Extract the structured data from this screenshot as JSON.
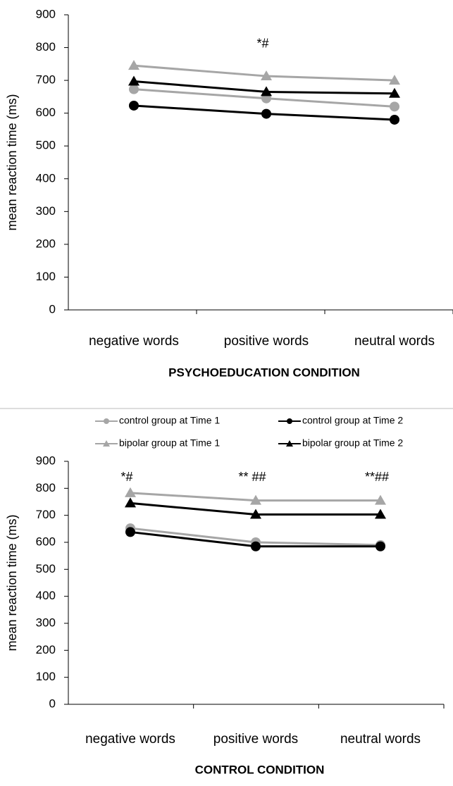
{
  "chart_data": [
    {
      "type": "line",
      "ylabel": "mean reaction time (ms)",
      "xlabel": "PSYCHOEDUCATION CONDITION",
      "categories": [
        "negative words",
        "positive words",
        "neutral words"
      ],
      "ylim": [
        0,
        900
      ],
      "yticks": [
        0,
        100,
        200,
        300,
        400,
        500,
        600,
        700,
        800,
        900
      ],
      "series": [
        {
          "color": "#a6a6a6",
          "marker": "circle",
          "values": [
            673,
            645,
            620
          ]
        },
        {
          "color": "#000000",
          "marker": "circle",
          "values": [
            623,
            598,
            580
          ]
        },
        {
          "color": "#a6a6a6",
          "marker": "triangle",
          "values": [
            745,
            713,
            700
          ]
        },
        {
          "color": "#000000",
          "marker": "triangle",
          "values": [
            697,
            665,
            660
          ]
        }
      ],
      "annotations": [
        {
          "category": 1,
          "y": 810,
          "text": "*#"
        }
      ]
    },
    {
      "type": "line",
      "ylabel": "mean reaction time (ms)",
      "xlabel": "CONTROL CONDITION",
      "categories": [
        "negative words",
        "positive words",
        "neutral words"
      ],
      "ylim": [
        0,
        900
      ],
      "yticks": [
        0,
        100,
        200,
        300,
        400,
        500,
        600,
        700,
        800,
        900
      ],
      "series": [
        {
          "name": "control group at Time 1",
          "color": "#a6a6a6",
          "marker": "circle",
          "values": [
            652,
            600,
            590
          ]
        },
        {
          "name": "control group at Time 2",
          "color": "#000000",
          "marker": "circle",
          "values": [
            638,
            585,
            585
          ]
        },
        {
          "name": "bipolar group at Time 1",
          "color": "#a6a6a6",
          "marker": "triangle",
          "values": [
            783,
            755,
            755
          ]
        },
        {
          "name": "bipolar group at Time 2",
          "color": "#000000",
          "marker": "triangle",
          "values": [
            745,
            703,
            703
          ]
        }
      ],
      "annotations": [
        {
          "category": 0,
          "y": 840,
          "text": "*#"
        },
        {
          "category": 1,
          "y": 840,
          "text": "** ##"
        },
        {
          "category": 2,
          "y": 840,
          "text": "**##"
        }
      ]
    }
  ]
}
